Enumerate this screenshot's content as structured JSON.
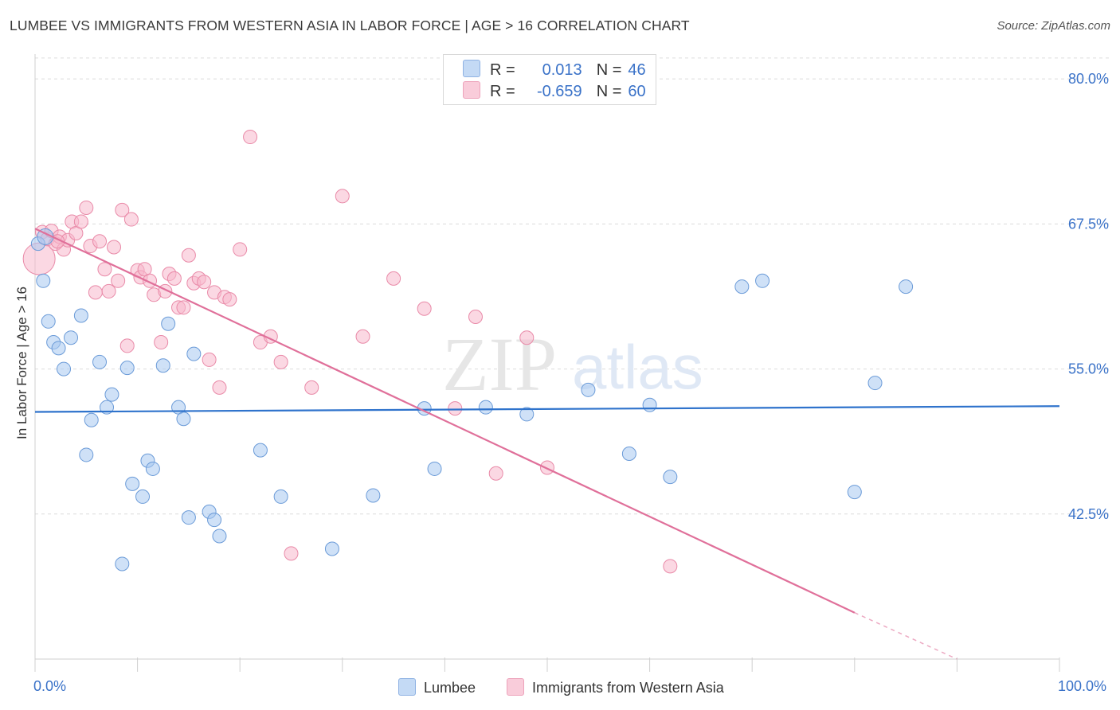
{
  "title": "LUMBEE VS IMMIGRANTS FROM WESTERN ASIA IN LABOR FORCE | AGE > 16 CORRELATION CHART",
  "source": "Source: ZipAtlas.com",
  "watermark": {
    "zip": "ZIP",
    "atlas": "atlas"
  },
  "legend_top": {
    "rows": [
      {
        "r_label": "R =",
        "r_value": "0.013",
        "n_label": "N =",
        "n_value": "46",
        "color": "#a8c8f0"
      },
      {
        "r_label": "R =",
        "r_value": "-0.659",
        "n_label": "N =",
        "n_value": "60",
        "color": "#f7b8cc"
      }
    ]
  },
  "legend_bottom": {
    "items": [
      {
        "label": "Lumbee",
        "color": "#a8c8f0"
      },
      {
        "label": "Immigrants from Western Asia",
        "color": "#f7b8cc"
      }
    ]
  },
  "x_tick_labels": {
    "left": "0.0%",
    "right": "100.0%"
  },
  "colors": {
    "blue_fill": "#a8c8f0",
    "blue_stroke": "#6b9bd8",
    "blue_line": "#2f73cc",
    "pink_fill": "#f7b8cc",
    "pink_stroke": "#e98aa8",
    "pink_line": "#e0709a",
    "axis_label": "#3a72c8",
    "grid": "#dcdcdc"
  },
  "chart_data": {
    "type": "scatter",
    "title": "LUMBEE VS IMMIGRANTS FROM WESTERN ASIA IN LABOR FORCE | AGE > 16 CORRELATION CHART",
    "xlabel": "",
    "ylabel": "In Labor Force | Age > 16",
    "xlim": [
      0,
      100
    ],
    "ylim": [
      30,
      82
    ],
    "y_ticks": [
      42.5,
      55.0,
      67.5,
      80.0
    ],
    "y_tick_labels": [
      "42.5%",
      "55.0%",
      "67.5%",
      "80.0%"
    ],
    "grid": true,
    "legend_position": "top-center",
    "series": [
      {
        "name": "Lumbee",
        "color": "#a8c8f0",
        "x": [
          0.3,
          0.8,
          1.3,
          1.8,
          2.3,
          2.8,
          3.5,
          4.5,
          5.0,
          5.5,
          6.3,
          7.0,
          7.5,
          8.5,
          9.0,
          9.5,
          10.5,
          11.0,
          11.5,
          12.5,
          13.0,
          14.0,
          14.5,
          15.0,
          15.5,
          17.0,
          17.5,
          18.0,
          22.0,
          24.0,
          29.0,
          33.0,
          38.0,
          39.0,
          44.0,
          48.0,
          54.0,
          58.0,
          60.0,
          62.0,
          69.0,
          71.0,
          80.0,
          82.0,
          85.0,
          1.0
        ],
        "y": [
          65.8,
          62.6,
          59.1,
          57.3,
          56.8,
          55.0,
          57.7,
          59.6,
          47.6,
          50.6,
          55.6,
          51.7,
          52.8,
          38.2,
          55.1,
          45.1,
          44.0,
          47.1,
          46.4,
          55.3,
          58.9,
          51.7,
          50.7,
          42.2,
          56.3,
          42.7,
          42.0,
          40.6,
          48.0,
          44.0,
          39.5,
          44.1,
          51.6,
          46.4,
          51.7,
          51.1,
          53.2,
          47.7,
          51.9,
          45.7,
          62.1,
          62.6,
          44.4,
          53.8,
          62.1,
          66.4
        ],
        "trend": {
          "x": [
            0,
            100
          ],
          "y": [
            51.3,
            51.8
          ]
        }
      },
      {
        "name": "Immigrants from Western Asia",
        "color": "#f7b8cc",
        "x": [
          0.4,
          0.7,
          1.2,
          1.6,
          2.0,
          2.4,
          2.8,
          3.2,
          3.6,
          4.0,
          4.5,
          5.0,
          5.4,
          5.9,
          6.3,
          6.8,
          7.2,
          7.7,
          8.1,
          8.5,
          9.0,
          9.4,
          10.0,
          10.3,
          10.7,
          11.2,
          11.6,
          12.3,
          12.7,
          13.1,
          13.6,
          14.0,
          14.5,
          15.0,
          15.5,
          16.0,
          16.5,
          17.0,
          17.5,
          18.0,
          18.5,
          19.0,
          20.0,
          21.0,
          22.0,
          23.0,
          24.0,
          25.0,
          27.0,
          30.0,
          32.0,
          35.0,
          38.0,
          41.0,
          43.0,
          45.0,
          48.0,
          50.0,
          62.0,
          2.2
        ],
        "y": [
          64.5,
          66.8,
          66.2,
          66.9,
          65.8,
          66.4,
          65.3,
          66.1,
          67.7,
          66.7,
          67.7,
          68.9,
          65.6,
          61.6,
          66.0,
          63.6,
          61.7,
          65.5,
          62.6,
          68.7,
          57.0,
          67.9,
          63.5,
          62.9,
          63.6,
          62.6,
          61.4,
          57.3,
          61.7,
          63.2,
          62.8,
          60.3,
          60.3,
          64.8,
          62.4,
          62.8,
          62.5,
          55.8,
          61.6,
          53.4,
          61.2,
          61.0,
          65.3,
          75.0,
          57.3,
          57.8,
          55.6,
          39.1,
          53.4,
          69.9,
          57.8,
          62.8,
          60.2,
          51.6,
          59.5,
          46.0,
          57.7,
          46.5,
          38.0,
          66.0
        ],
        "trend": {
          "x": [
            0,
            80
          ],
          "y": [
            67.1,
            34.0
          ]
        },
        "trend_extension": {
          "x": [
            80,
            90
          ],
          "y": [
            34.0,
            30.0
          ]
        }
      }
    ]
  }
}
